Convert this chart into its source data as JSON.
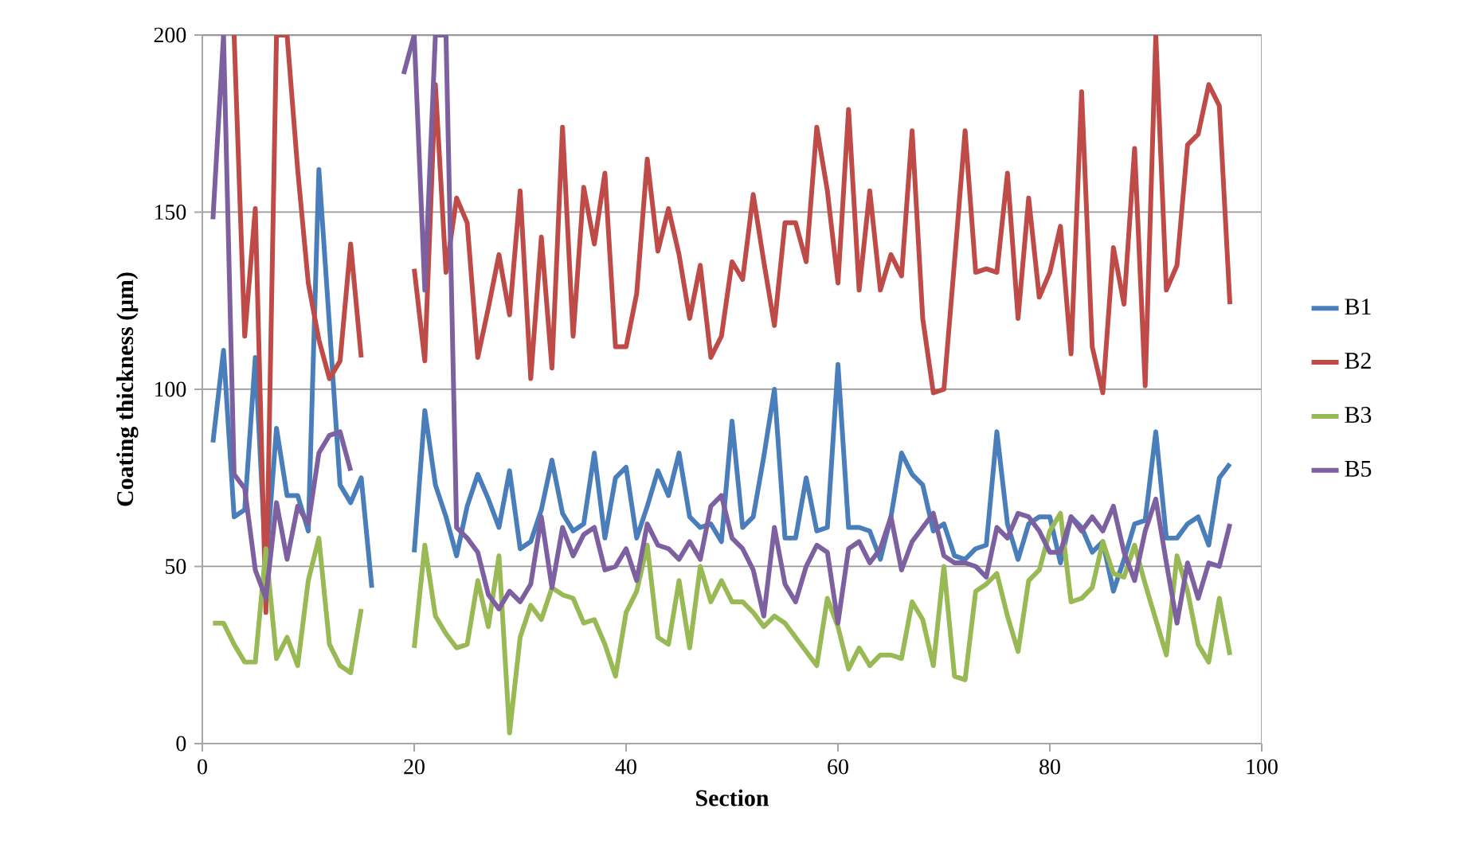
{
  "chart_data": {
    "type": "line",
    "xlabel": "Section",
    "ylabel": "Coating thickness (μm)",
    "x": [
      1,
      2,
      3,
      4,
      5,
      6,
      7,
      8,
      9,
      10,
      11,
      12,
      13,
      14,
      15,
      16,
      17,
      18,
      19,
      20,
      21,
      22,
      23,
      24,
      25,
      26,
      27,
      28,
      29,
      30,
      31,
      32,
      33,
      34,
      35,
      36,
      37,
      38,
      39,
      40,
      41,
      42,
      43,
      44,
      45,
      46,
      47,
      48,
      49,
      50,
      51,
      52,
      53,
      54,
      55,
      56,
      57,
      58,
      59,
      60,
      61,
      62,
      63,
      64,
      65,
      66,
      67,
      68,
      69,
      70,
      71,
      72,
      73,
      74,
      75,
      76,
      77,
      78,
      79,
      80,
      81,
      82,
      83,
      84,
      85,
      86,
      87,
      88,
      89,
      90,
      91,
      92,
      93,
      94,
      95,
      96,
      97
    ],
    "series": [
      {
        "name": "B1",
        "color": "#4a7ebb",
        "values": [
          85,
          111,
          64,
          66,
          109,
          50,
          89,
          70,
          70,
          60,
          162,
          118,
          73,
          68,
          75,
          44,
          null,
          null,
          null,
          54,
          94,
          73,
          64,
          53,
          67,
          76,
          69,
          61,
          77,
          55,
          57,
          66,
          80,
          65,
          60,
          62,
          82,
          58,
          75,
          78,
          58,
          67,
          77,
          70,
          82,
          64,
          61,
          62,
          57,
          91,
          61,
          64,
          81,
          100,
          58,
          58,
          75,
          60,
          61,
          107,
          61,
          61,
          60,
          52,
          64,
          82,
          76,
          73,
          60,
          62,
          53,
          52,
          55,
          56,
          88,
          62,
          52,
          62,
          64,
          64,
          51,
          64,
          61,
          54,
          57,
          43,
          52,
          62,
          63,
          88,
          58,
          58,
          62,
          64,
          56,
          75,
          79
        ]
      },
      {
        "name": "B2",
        "color": "#be4b48",
        "values": [
          null,
          null,
          200,
          115,
          151,
          37,
          200,
          200,
          162,
          130,
          114,
          103,
          108,
          141,
          109,
          null,
          null,
          null,
          null,
          134,
          108,
          186,
          133,
          154,
          147,
          109,
          123,
          138,
          121,
          156,
          103,
          143,
          106,
          174,
          115,
          157,
          141,
          161,
          112,
          112,
          127,
          165,
          139,
          151,
          138,
          120,
          135,
          109,
          115,
          136,
          131,
          155,
          136,
          118,
          147,
          147,
          136,
          174,
          156,
          130,
          179,
          128,
          156,
          128,
          138,
          132,
          173,
          120,
          99,
          100,
          136,
          173,
          133,
          134,
          133,
          161,
          120,
          154,
          126,
          133,
          146,
          110,
          184,
          112,
          99,
          140,
          124,
          168,
          101,
          200,
          128,
          135,
          169,
          172,
          186,
          180,
          124
        ]
      },
      {
        "name": "B3",
        "color": "#98b954",
        "values": [
          34,
          34,
          28,
          23,
          23,
          55,
          24,
          30,
          22,
          46,
          58,
          28,
          22,
          20,
          38,
          null,
          null,
          null,
          null,
          27,
          56,
          36,
          31,
          27,
          28,
          46,
          33,
          53,
          3,
          30,
          39,
          35,
          44,
          42,
          41,
          34,
          35,
          28,
          19,
          37,
          43,
          56,
          30,
          28,
          46,
          27,
          50,
          40,
          46,
          40,
          40,
          37,
          33,
          36,
          34,
          30,
          26,
          22,
          41,
          33,
          21,
          27,
          22,
          25,
          25,
          24,
          40,
          35,
          22,
          50,
          19,
          18,
          43,
          45,
          48,
          36,
          26,
          46,
          49,
          60,
          65,
          40,
          41,
          44,
          57,
          48,
          47,
          56,
          45,
          35,
          25,
          53,
          43,
          28,
          23,
          41,
          25
        ]
      },
      {
        "name": "B5",
        "color": "#7d60a0",
        "values": [
          148,
          200,
          76,
          72,
          49,
          41,
          68,
          52,
          67,
          62,
          82,
          87,
          88,
          77,
          null,
          null,
          null,
          null,
          189,
          200,
          128,
          200,
          200,
          61,
          58,
          54,
          42,
          38,
          43,
          40,
          45,
          64,
          44,
          61,
          53,
          59,
          61,
          49,
          50,
          55,
          46,
          62,
          56,
          55,
          52,
          57,
          52,
          67,
          70,
          58,
          55,
          49,
          36,
          61,
          45,
          40,
          50,
          56,
          54,
          34,
          55,
          57,
          51,
          55,
          64,
          49,
          57,
          61,
          65,
          53,
          51,
          51,
          50,
          47,
          61,
          58,
          65,
          64,
          60,
          54,
          54,
          64,
          60,
          64,
          60,
          67,
          54,
          46,
          60,
          69,
          51,
          34,
          51,
          41,
          51,
          50,
          62
        ]
      }
    ],
    "xlim": [
      0,
      100
    ],
    "xticks": [
      0,
      20,
      40,
      60,
      80,
      100
    ],
    "ylim": [
      0,
      200
    ],
    "yticks": [
      0,
      50,
      100,
      150,
      200
    ],
    "grid": "y",
    "legend": "right",
    "marker": "none",
    "line_style": "solid"
  }
}
